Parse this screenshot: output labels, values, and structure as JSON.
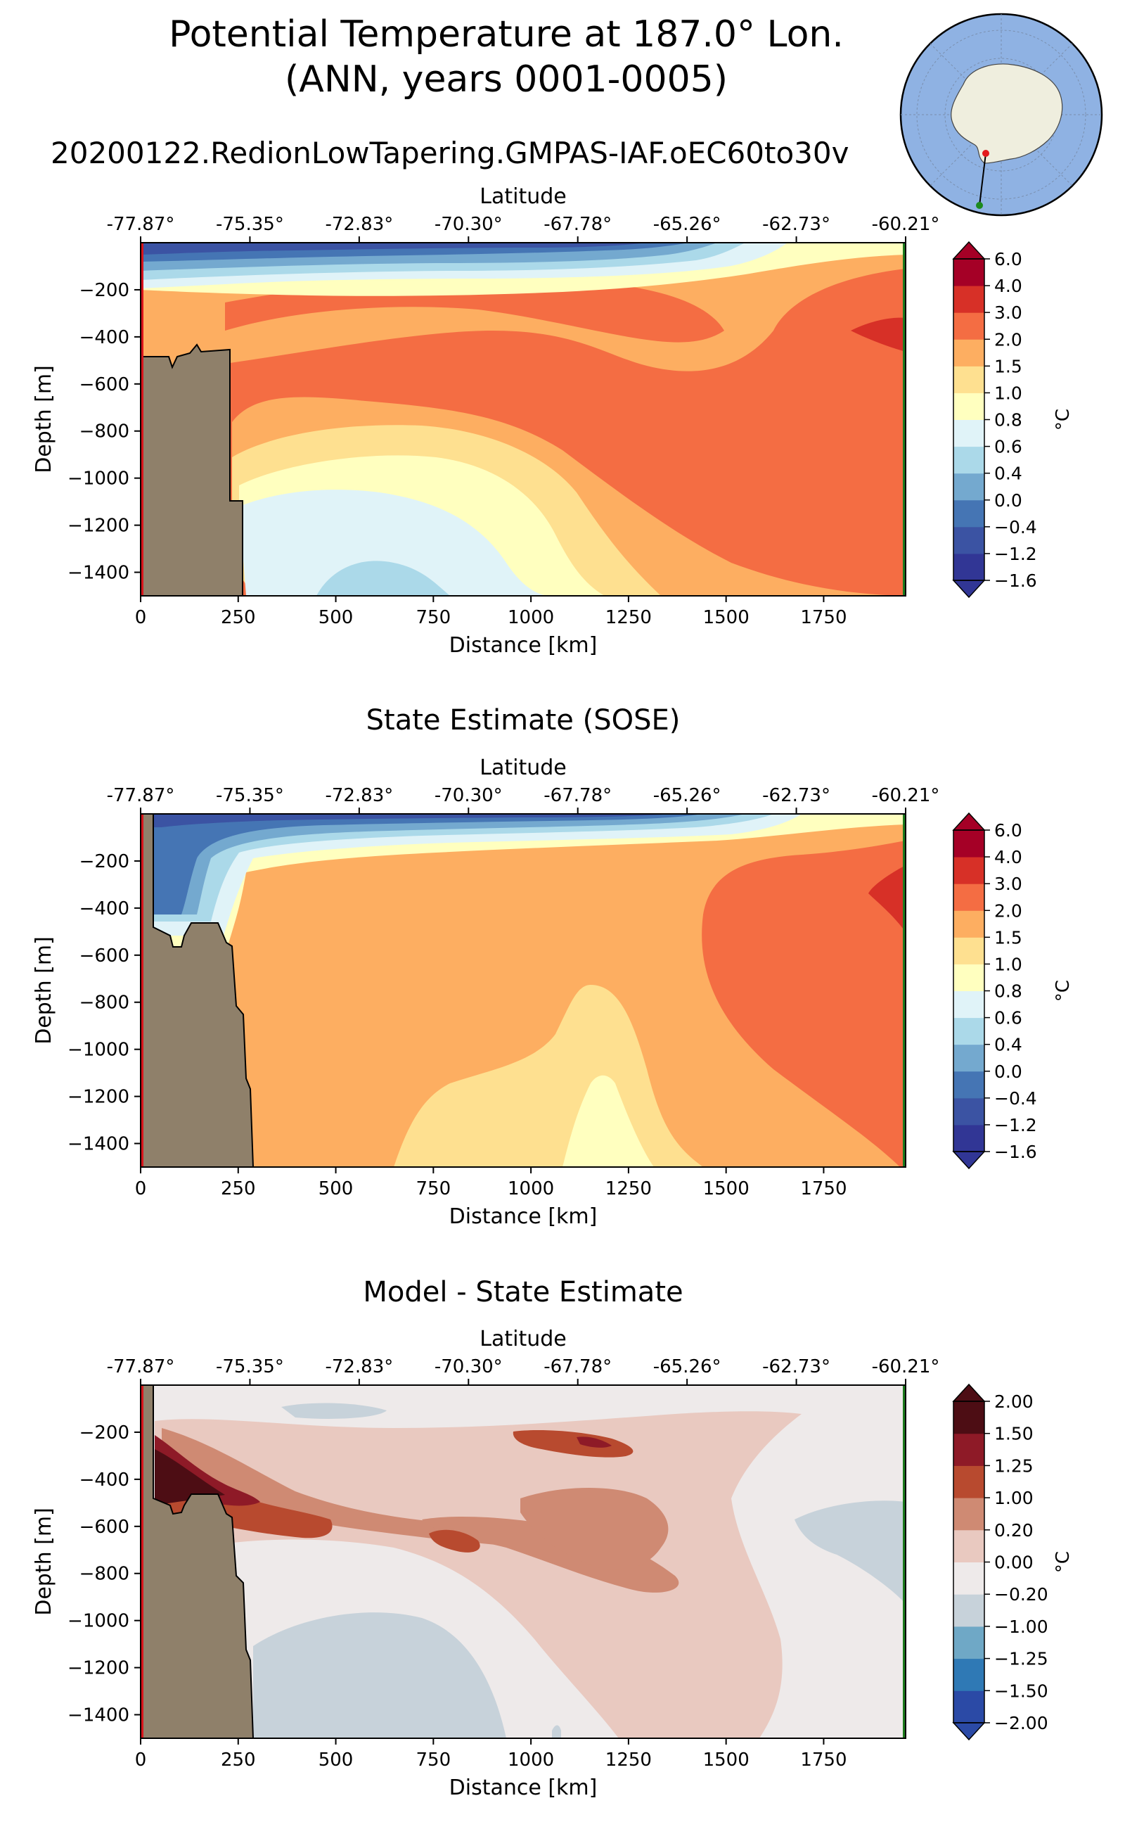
{
  "figure": {
    "title_line1": "Potential Temperature at 187.0° Lon.",
    "title_line2": "(ANN, years 0001-0005)",
    "subtitle": "20200122.RedionLowTapering.GMPAS-IAF.oEC60to30v"
  },
  "colors": {
    "land": "#8f806a",
    "start_marker": "#d8141b",
    "end_marker": "#1d7a1d",
    "map_ocean": "#8fb2e3",
    "map_land": "#efeede"
  },
  "chart_data": [
    {
      "type": "heatmap",
      "title": "",
      "xlabel": "Distance [km]",
      "ylabel": "Depth [m]",
      "top_xlabel": "Latitude",
      "xlim": [
        0,
        1960
      ],
      "ylim": [
        -1500,
        0
      ],
      "xticks": [
        "0",
        "250",
        "500",
        "750",
        "1000",
        "1250",
        "1500",
        "1750"
      ],
      "yticks": [
        "−200",
        "−400",
        "−600",
        "−800",
        "−1000",
        "−1200",
        "−1400"
      ],
      "lat_ticks": [
        "-77.87°",
        "-75.35°",
        "-72.83°",
        "-70.30°",
        "-67.78°",
        "-65.26°",
        "-62.73°",
        "-60.21°"
      ],
      "colorbar_label": "°C",
      "colorbar_ticks": [
        "6.0",
        "4.0",
        "3.0",
        "2.0",
        "1.5",
        "1.0",
        "0.8",
        "0.6",
        "0.4",
        "0.0",
        "−0.4",
        "−1.2",
        "−1.6"
      ],
      "levels": [
        -1.6,
        -1.2,
        -0.4,
        0.0,
        0.4,
        0.6,
        0.8,
        1.0,
        1.5,
        2.0,
        3.0,
        4.0,
        6.0
      ],
      "colors": [
        "#313695",
        "#3b53a3",
        "#4575b4",
        "#74a9cf",
        "#abd9e9",
        "#e0f3f8",
        "#ffffbf",
        "#fee090",
        "#fdae61",
        "#f46d43",
        "#d73027",
        "#a50026"
      ],
      "bathymetry_km": [
        [
          0,
          -500
        ],
        [
          20,
          -500
        ],
        [
          60,
          -500
        ],
        [
          70,
          -530
        ],
        [
          90,
          -500
        ],
        [
          130,
          -470
        ],
        [
          150,
          -430
        ],
        [
          160,
          -470
        ],
        [
          225,
          -470
        ],
        [
          225,
          -1100
        ],
        [
          260,
          -1100
        ],
        [
          260,
          -1500
        ]
      ]
    },
    {
      "type": "heatmap",
      "title": "State Estimate (SOSE)",
      "xlabel": "Distance [km]",
      "ylabel": "Depth [m]",
      "top_xlabel": "Latitude",
      "xlim": [
        0,
        1960
      ],
      "ylim": [
        -1500,
        0
      ],
      "xticks": [
        "0",
        "250",
        "500",
        "750",
        "1000",
        "1250",
        "1500",
        "1750"
      ],
      "yticks": [
        "−200",
        "−400",
        "−600",
        "−800",
        "−1000",
        "−1200",
        "−1400"
      ],
      "lat_ticks": [
        "-77.87°",
        "-75.35°",
        "-72.83°",
        "-70.30°",
        "-67.78°",
        "-65.26°",
        "-62.73°",
        "-60.21°"
      ],
      "colorbar_label": "°C",
      "colorbar_ticks": [
        "6.0",
        "4.0",
        "3.0",
        "2.0",
        "1.5",
        "1.0",
        "0.8",
        "0.6",
        "0.4",
        "0.0",
        "−0.4",
        "−1.2",
        "−1.6"
      ],
      "levels": [
        -1.6,
        -1.2,
        -0.4,
        0.0,
        0.4,
        0.6,
        0.8,
        1.0,
        1.5,
        2.0,
        3.0,
        4.0,
        6.0
      ],
      "colors": [
        "#313695",
        "#3b53a3",
        "#4575b4",
        "#74a9cf",
        "#abd9e9",
        "#e0f3f8",
        "#ffffbf",
        "#fee090",
        "#fdae61",
        "#f46d43",
        "#d73027",
        "#a50026"
      ],
      "bathymetry_km": [
        [
          0,
          -500
        ],
        [
          35,
          -500
        ],
        [
          35,
          -20
        ],
        [
          35,
          -500
        ],
        [
          75,
          -560
        ],
        [
          100,
          -560
        ],
        [
          130,
          -440
        ],
        [
          200,
          -440
        ],
        [
          235,
          -600
        ],
        [
          250,
          -870
        ],
        [
          265,
          -1060
        ],
        [
          280,
          -1500
        ]
      ]
    },
    {
      "type": "heatmap",
      "title": "Model - State Estimate",
      "xlabel": "Distance [km]",
      "ylabel": "Depth [m]",
      "top_xlabel": "Latitude",
      "xlim": [
        0,
        1960
      ],
      "ylim": [
        -1500,
        0
      ],
      "xticks": [
        "0",
        "250",
        "500",
        "750",
        "1000",
        "1250",
        "1500",
        "1750"
      ],
      "yticks": [
        "−200",
        "−400",
        "−600",
        "−800",
        "−1000",
        "−1200",
        "−1400"
      ],
      "lat_ticks": [
        "-77.87°",
        "-75.35°",
        "-72.83°",
        "-70.30°",
        "-67.78°",
        "-65.26°",
        "-62.73°",
        "-60.21°"
      ],
      "colorbar_label": "°C",
      "colorbar_ticks": [
        "2.00",
        "1.50",
        "1.25",
        "1.00",
        "0.20",
        "0.00",
        "−0.20",
        "−1.00",
        "−1.25",
        "−1.50",
        "−2.00"
      ],
      "levels": [
        -2.0,
        -1.5,
        -1.25,
        -1.0,
        -0.2,
        0.0,
        0.2,
        1.0,
        1.25,
        1.5,
        2.0
      ],
      "colors": [
        "#2b4aa6",
        "#2f79b5",
        "#6fa8c6",
        "#c7d2da",
        "#eeeaea",
        "#e9c9c0",
        "#cf8a73",
        "#b84a2f",
        "#8e1a27",
        "#4d0d14"
      ],
      "bathymetry_km": [
        [
          0,
          -500
        ],
        [
          35,
          -500
        ],
        [
          35,
          -20
        ],
        [
          35,
          -500
        ],
        [
          75,
          -520
        ],
        [
          100,
          -500
        ],
        [
          130,
          -440
        ],
        [
          200,
          -440
        ],
        [
          235,
          -600
        ],
        [
          250,
          -870
        ],
        [
          265,
          -1060
        ],
        [
          280,
          -1500
        ]
      ]
    }
  ]
}
